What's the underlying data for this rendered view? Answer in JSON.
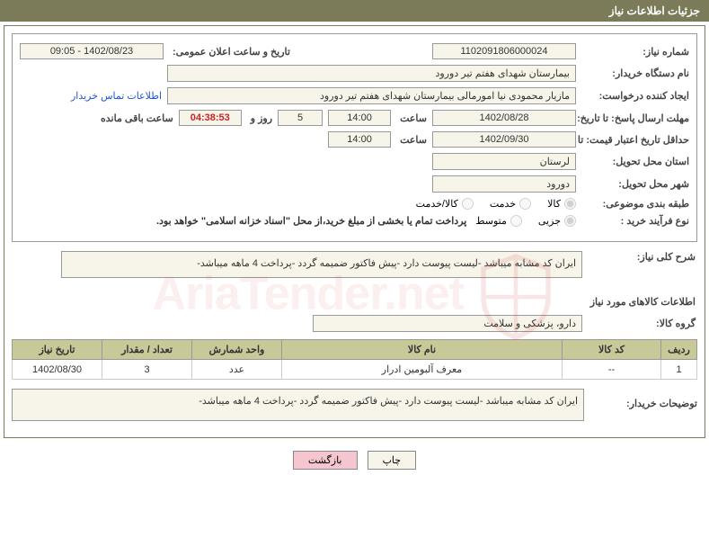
{
  "header": {
    "title": "جزئیات اطلاعات نیاز"
  },
  "need": {
    "number_label": "شماره نیاز:",
    "number": "1102091806000024",
    "announce_label": "تاریخ و ساعت اعلان عمومی:",
    "announce": "1402/08/23 - 09:05",
    "buyer_org_label": "نام دستگاه خریدار:",
    "buyer_org": "بیمارستان شهدای هفتم تیر دورود",
    "requester_label": "ایجاد کننده درخواست:",
    "requester": "مازیار محمودی نیا امورمالی بیمارستان شهدای هفتم تیر دورود",
    "contact_link": "اطلاعات تماس خریدار",
    "deadline_label": "مهلت ارسال پاسخ: تا تاریخ:",
    "deadline_date": "1402/08/28",
    "time_word": "ساعت",
    "deadline_time": "14:00",
    "days_count": "5",
    "days_word": "روز و",
    "countdown": "04:38:53",
    "remaining_word": "ساعت باقی مانده",
    "validity_label": "حداقل تاریخ اعتبار قیمت: تا تاریخ:",
    "validity_date": "1402/09/30",
    "validity_time": "14:00",
    "province_label": "استان محل تحویل:",
    "province": "لرستان",
    "city_label": "شهر محل تحویل:",
    "city": "دورود",
    "category_label": "طبقه بندی موضوعی:",
    "category_options": {
      "goods": "کالا",
      "service": "خدمت",
      "both": "کالا/خدمت"
    },
    "process_label": "نوع فرآیند خرید :",
    "process_options": {
      "partial": "جزیی",
      "medium": "متوسط"
    },
    "process_note": "پرداخت تمام یا بخشی از مبلغ خرید،از محل \"اسناد خزانه اسلامی\" خواهد بود.",
    "summary_label": "شرح کلی نیاز:",
    "summary": "ایران کد مشابه میباشد -لیست پیوست دارد -پیش فاکتور ضمیمه گردد -پرداخت 4 ماهه میباشد-"
  },
  "itemsSection": {
    "title": "اطلاعات کالاهای مورد نیاز",
    "group_label": "گروه کالا:",
    "group": "دارو، پزشکی و سلامت"
  },
  "table": {
    "headers": {
      "row": "ردیف",
      "code": "کد کالا",
      "name": "نام کالا",
      "unit": "واحد شمارش",
      "qty": "تعداد / مقدار",
      "date": "تاریخ نیاز"
    },
    "rows": [
      {
        "row": "1",
        "code": "--",
        "name": "معرف آلبومین ادرار",
        "unit": "عدد",
        "qty": "3",
        "date": "1402/08/30"
      }
    ]
  },
  "buyerDesc": {
    "label": "توضیحات خریدار:",
    "text": "ایران کد مشابه میباشد -لیست پیوست دارد -پیش فاکتور ضمیمه گردد -پرداخت 4 ماهه میباشد-"
  },
  "buttons": {
    "print": "چاپ",
    "back": "بازگشت"
  },
  "watermark": "AriaTender.net"
}
